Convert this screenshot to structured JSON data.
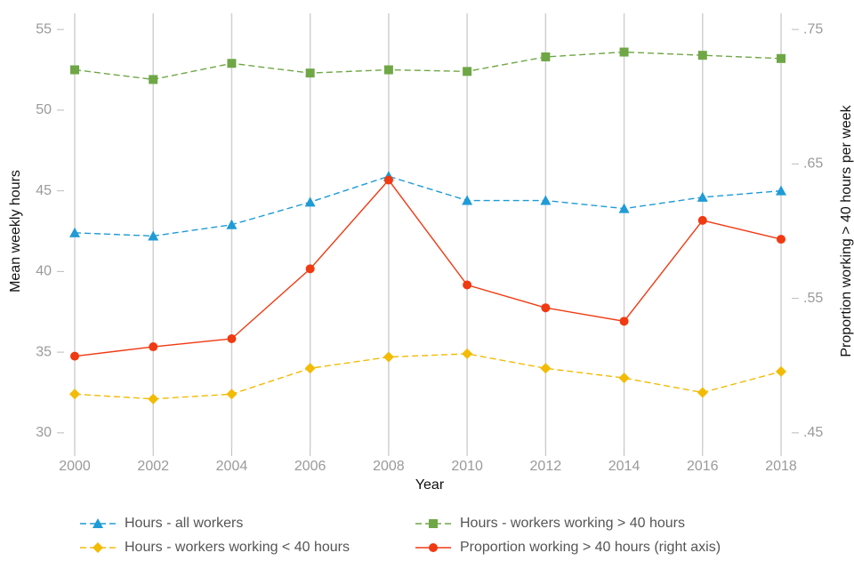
{
  "chart_data": {
    "type": "line",
    "x_label": "Year",
    "y_label": "Mean weekly hours",
    "y2_label": "Proportion working > 40 hours per week",
    "x": [
      2000,
      2002,
      2004,
      2006,
      2008,
      2010,
      2012,
      2014,
      2016,
      2018
    ],
    "xlim": [
      2000,
      2018
    ],
    "xticks": [
      2000,
      2002,
      2004,
      2006,
      2008,
      2010,
      2012,
      2014,
      2016,
      2018
    ],
    "ylim": [
      29,
      56
    ],
    "yticks": [
      30,
      35,
      40,
      45,
      50,
      55
    ],
    "y2lim": [
      0.438,
      0.762
    ],
    "y2ticks": [
      {
        "value": 0.45,
        "label": ".45"
      },
      {
        "value": 0.55,
        "label": ".55"
      },
      {
        "value": 0.65,
        "label": ".65"
      },
      {
        "value": 0.75,
        "label": ".75"
      }
    ],
    "grid": "x",
    "legend": "bottom",
    "series": [
      {
        "name": "Hours - all workers",
        "color": "#1f9bd6",
        "marker": "triangle",
        "dash": true,
        "values": [
          42.4,
          42.2,
          42.9,
          44.3,
          45.9,
          44.4,
          44.4,
          43.9,
          44.6,
          45.0
        ]
      },
      {
        "name": "Hours - workers working > 40 hours",
        "color": "#6fa746",
        "marker": "square",
        "dash": true,
        "values": [
          52.5,
          51.9,
          52.9,
          52.3,
          52.5,
          52.4,
          53.3,
          53.6,
          53.4,
          53.2
        ]
      },
      {
        "name": "Hours - workers working < 40 hours",
        "color": "#f2bb05",
        "marker": "diamond",
        "dash": true,
        "values": [
          32.4,
          32.1,
          32.4,
          34.0,
          34.7,
          34.9,
          34.0,
          33.4,
          32.5,
          33.8
        ]
      },
      {
        "name": "Proportion working > 40 hours (right axis)",
        "color": "#f03a12",
        "marker": "circle",
        "dash": false,
        "axis": "y2",
        "values": [
          0.507,
          0.514,
          0.52,
          0.572,
          0.638,
          0.56,
          0.543,
          0.533,
          0.608,
          0.594
        ]
      }
    ]
  }
}
